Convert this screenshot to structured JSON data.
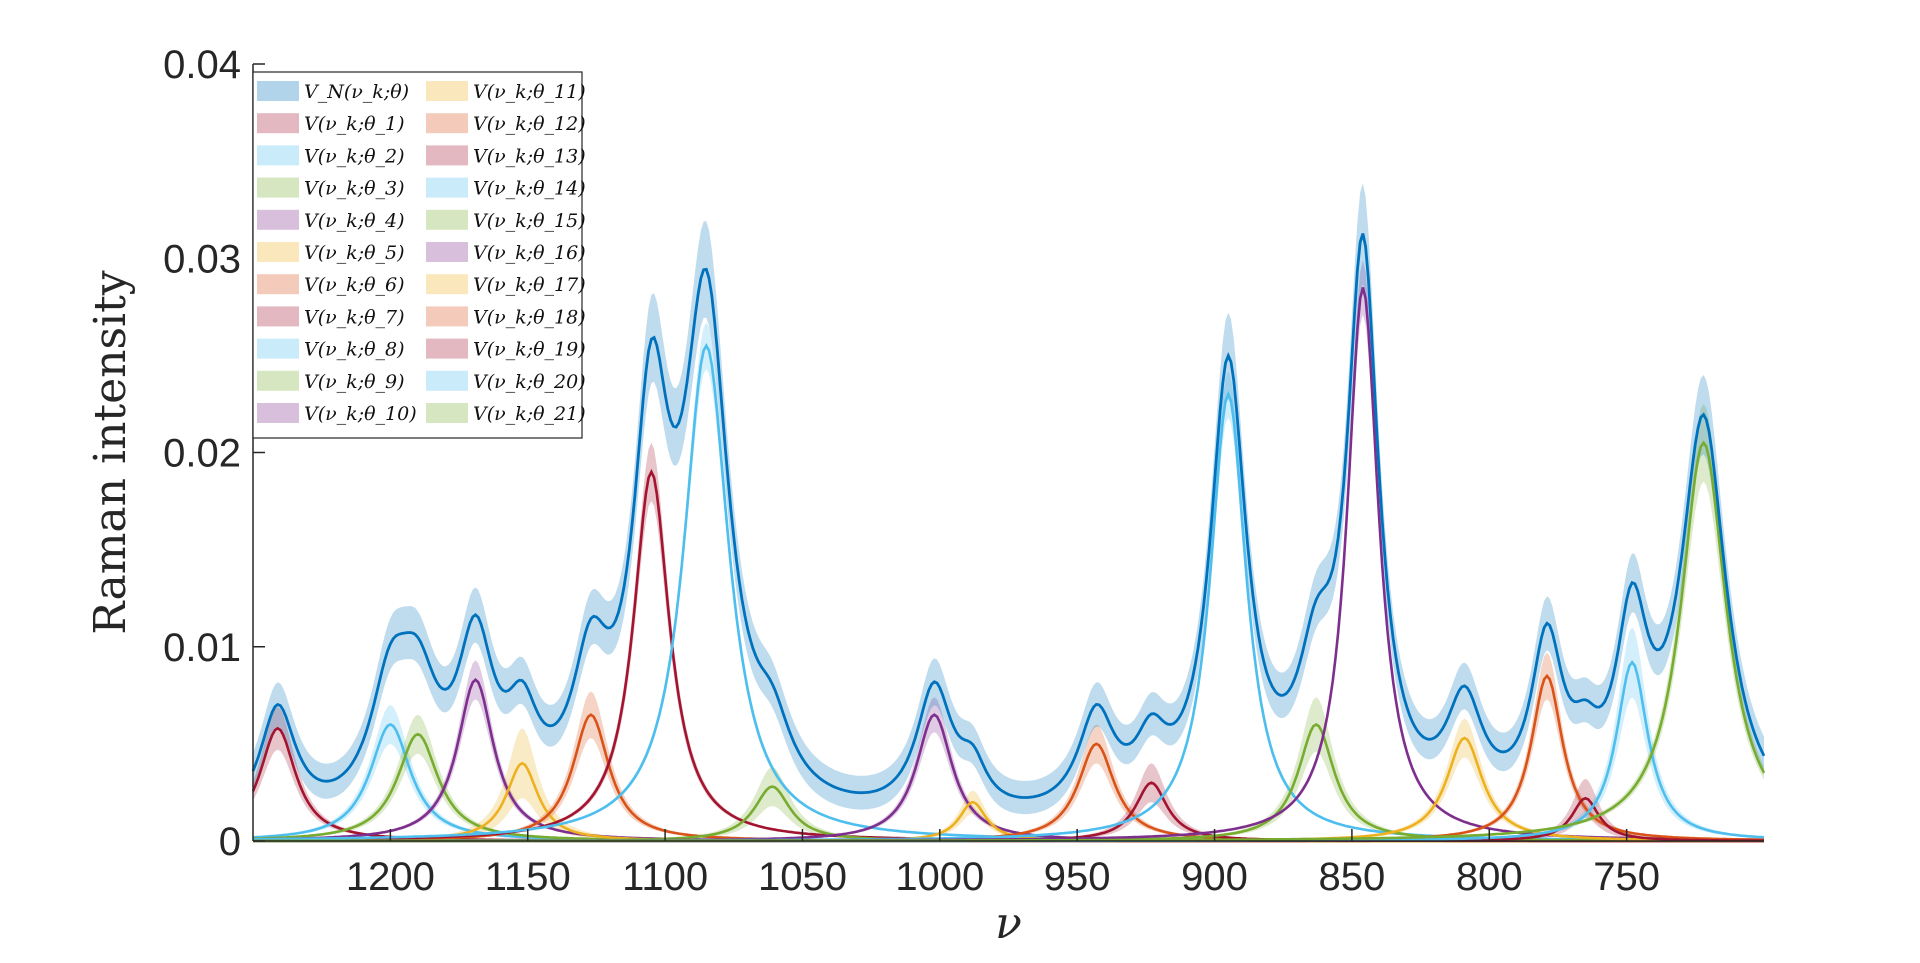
{
  "chart_data": {
    "type": "line",
    "title": "",
    "xlabel": "ν",
    "ylabel": "Raman intensity",
    "xlim": [
      1250,
      700
    ],
    "ylim": [
      0,
      0.04
    ],
    "x_reversed": true,
    "grid": false,
    "legend_position": "top-left",
    "xticks": [
      1200,
      1150,
      1100,
      1050,
      1000,
      950,
      900,
      850,
      800,
      750
    ],
    "yticks": [
      0,
      0.01,
      0.02,
      0.03,
      0.04
    ],
    "ytick_labels": [
      "0",
      "0.01",
      "0.02",
      "0.03",
      "0.04"
    ],
    "legend": [
      "V_N(ν_k;θ)",
      "V(ν_k;θ_1)",
      "V(ν_k;θ_2)",
      "V(ν_k;θ_3)",
      "V(ν_k;θ_4)",
      "V(ν_k;θ_5)",
      "V(ν_k;θ_6)",
      "V(ν_k;θ_7)",
      "V(ν_k;θ_8)",
      "V(ν_k;θ_9)",
      "V(ν_k;θ_10)",
      "V(ν_k;θ_11)",
      "V(ν_k;θ_12)",
      "V(ν_k;θ_13)",
      "V(ν_k;θ_14)",
      "V(ν_k;θ_15)",
      "V(ν_k;θ_16)",
      "V(ν_k;θ_17)",
      "V(ν_k;θ_18)",
      "V(ν_k;θ_19)",
      "V(ν_k;θ_20)",
      "V(ν_k;θ_21)"
    ],
    "colors": [
      "#0072BD",
      "#A2142F",
      "#4DBEEE",
      "#77AC30",
      "#7E2F8E",
      "#EDB120",
      "#D95319"
    ],
    "peaks": [
      {
        "center": 1241,
        "height": 0.0058,
        "width": 8,
        "band": 0.0011
      },
      {
        "center": 1200,
        "height": 0.006,
        "width": 9,
        "band": 0.001
      },
      {
        "center": 1190,
        "height": 0.0055,
        "width": 9,
        "band": 0.001
      },
      {
        "center": 1169,
        "height": 0.0083,
        "width": 8,
        "band": 0.001
      },
      {
        "center": 1152,
        "height": 0.004,
        "width": 7,
        "band": 0.0018
      },
      {
        "center": 1127,
        "height": 0.0065,
        "width": 8,
        "band": 0.0012
      },
      {
        "center": 1105,
        "height": 0.019,
        "width": 8,
        "band": 0.0015
      },
      {
        "center": 1085,
        "height": 0.0255,
        "width": 10,
        "band": 0.0012
      },
      {
        "center": 1061,
        "height": 0.0028,
        "width": 8,
        "band": 0.001
      },
      {
        "center": 1002,
        "height": 0.0065,
        "width": 8,
        "band": 0.0009
      },
      {
        "center": 988,
        "height": 0.002,
        "width": 6,
        "band": 0.0006
      },
      {
        "center": 943,
        "height": 0.005,
        "width": 8,
        "band": 0.001
      },
      {
        "center": 923,
        "height": 0.003,
        "width": 7,
        "band": 0.001
      },
      {
        "center": 895,
        "height": 0.023,
        "width": 8,
        "band": 0.0012
      },
      {
        "center": 863,
        "height": 0.006,
        "width": 8,
        "band": 0.0014
      },
      {
        "center": 846,
        "height": 0.0285,
        "width": 7,
        "band": 0.0014
      },
      {
        "center": 809,
        "height": 0.0053,
        "width": 8,
        "band": 0.001
      },
      {
        "center": 779,
        "height": 0.0085,
        "width": 7,
        "band": 0.0012
      },
      {
        "center": 765,
        "height": 0.0022,
        "width": 6,
        "band": 0.001
      },
      {
        "center": 748,
        "height": 0.0092,
        "width": 7,
        "band": 0.0018
      },
      {
        "center": 722,
        "height": 0.0205,
        "width": 10,
        "band": 0.002
      }
    ],
    "total_band": 0.0018
  }
}
